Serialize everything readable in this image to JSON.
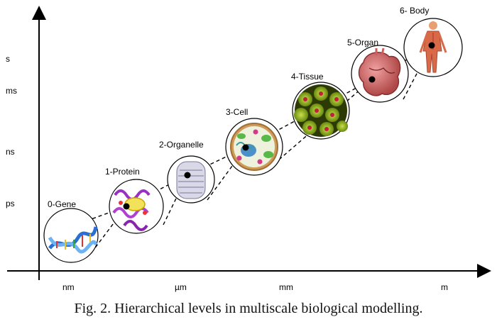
{
  "figure": {
    "y_ticks": [
      "s",
      "ms",
      "ns",
      "ps"
    ],
    "x_ticks": [
      "nm",
      "µm",
      "mm",
      "m"
    ],
    "levels": [
      {
        "label": "0-Gene",
        "icon": "dna-helix-icon"
      },
      {
        "label": "1-Protein",
        "icon": "protein-structure-icon"
      },
      {
        "label": "2-Organelle",
        "icon": "organelle-icon"
      },
      {
        "label": "3-Cell",
        "icon": "cell-icon"
      },
      {
        "label": "4-Tissue",
        "icon": "tissue-icon"
      },
      {
        "label": "5-Organ",
        "icon": "organ-icon"
      },
      {
        "label": "6- Body",
        "icon": "human-body-icon"
      }
    ],
    "caption": "Fig. 2.  Hierarchical levels in multiscale biological modelling."
  }
}
